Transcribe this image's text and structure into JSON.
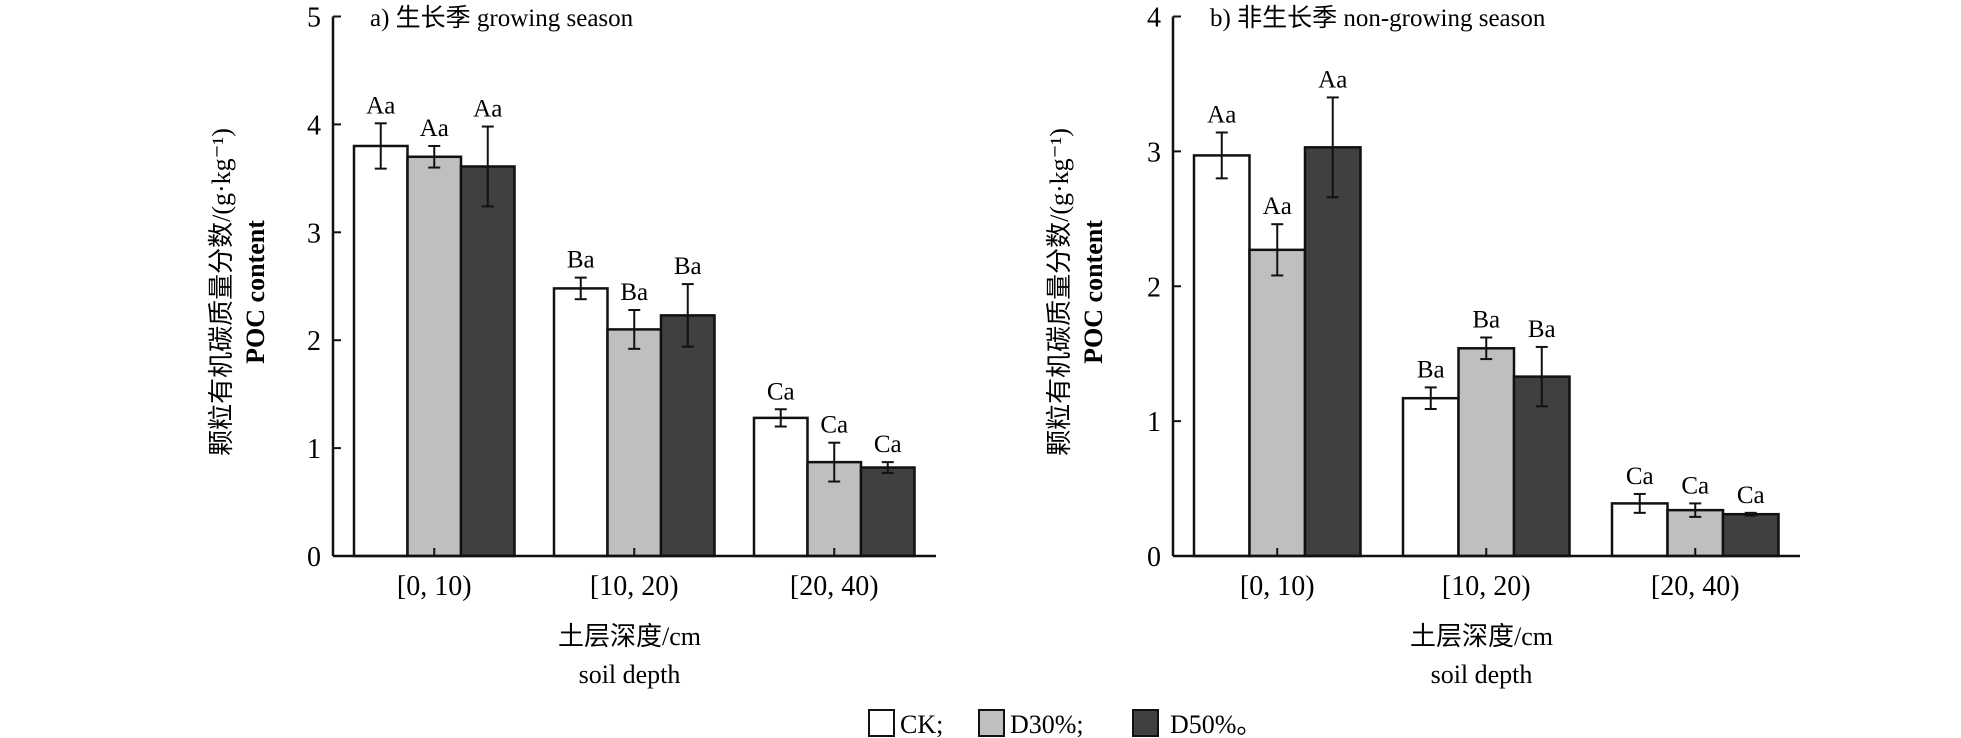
{
  "chart_data": [
    {
      "type": "bar",
      "title": "a) 生长季 growing season",
      "xlabel": [
        "土层深度/cm",
        "soil depth"
      ],
      "ylabel": [
        "颗粒有机碳质量分数/(g·kg⁻¹)",
        "POC content"
      ],
      "ylim": [
        0,
        5
      ],
      "yticks": [
        0,
        1,
        2,
        3,
        4,
        5
      ],
      "categories": [
        "[0, 10)",
        "[10, 20)",
        "[20, 40)"
      ],
      "series": [
        {
          "name": "CK",
          "values": [
            3.8,
            2.48,
            1.28
          ],
          "errors": [
            0.21,
            0.1,
            0.08
          ],
          "labels": [
            "Aa",
            "Ba",
            "Ca"
          ]
        },
        {
          "name": "D30%",
          "values": [
            3.7,
            2.1,
            0.87
          ],
          "errors": [
            0.1,
            0.18,
            0.18
          ],
          "labels": [
            "Aa",
            "Ba",
            "Ca"
          ]
        },
        {
          "name": "D50%",
          "values": [
            3.61,
            2.23,
            0.82
          ],
          "errors": [
            0.37,
            0.29,
            0.05
          ],
          "labels": [
            "Aa",
            "Ba",
            "Ca"
          ]
        }
      ]
    },
    {
      "type": "bar",
      "title": "b) 非生长季 non-growing season",
      "xlabel": [
        "土层深度/cm",
        "soil depth"
      ],
      "ylabel": [
        "颗粒有机碳质量分数/(g·kg⁻¹)",
        "POC content"
      ],
      "ylim": [
        0,
        4
      ],
      "yticks": [
        0,
        1,
        2,
        3,
        4
      ],
      "categories": [
        "[0, 10)",
        "[10, 20)",
        "[20, 40)"
      ],
      "series": [
        {
          "name": "CK",
          "values": [
            2.97,
            1.17,
            0.39
          ],
          "errors": [
            0.17,
            0.08,
            0.07
          ],
          "labels": [
            "Aa",
            "Ba",
            "Ca"
          ]
        },
        {
          "name": "D30%",
          "values": [
            2.27,
            1.54,
            0.34
          ],
          "errors": [
            0.19,
            0.08,
            0.05
          ],
          "labels": [
            "Aa",
            "Ba",
            "Ca"
          ]
        },
        {
          "name": "D50%",
          "values": [
            3.03,
            1.33,
            0.31
          ],
          "errors": [
            0.37,
            0.22,
            0.01
          ],
          "labels": [
            "Aa",
            "Ba",
            "Ca"
          ]
        }
      ]
    }
  ],
  "legend": {
    "placement": "bottom-center",
    "items": [
      {
        "label": "CK;",
        "color": "#ffffff"
      },
      {
        "label": "D30%;",
        "color": "#bfbfbf"
      },
      {
        "label": "D50%。",
        "color": "#404040"
      }
    ]
  }
}
